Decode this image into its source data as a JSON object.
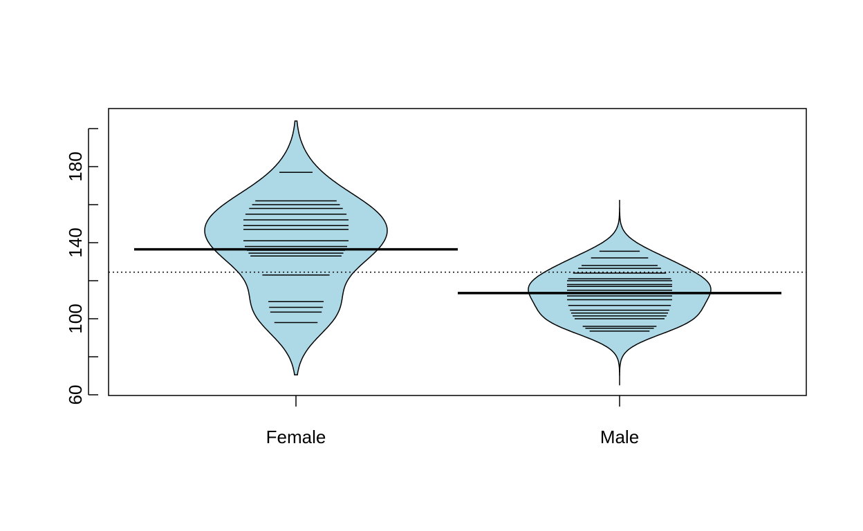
{
  "chart_data": {
    "type": "beanplot",
    "title": "",
    "xlabel": "",
    "ylabel": "",
    "ylim": [
      60,
      210
    ],
    "yticks": [
      60,
      80,
      100,
      120,
      140,
      160,
      180,
      200
    ],
    "ytick_labels": [
      "60",
      "",
      "100",
      "",
      "140",
      "",
      "180",
      ""
    ],
    "overall_mean": 124.5,
    "fill_color": "#add8e6",
    "categories": [
      "Female",
      "Male"
    ],
    "groups": [
      {
        "category": "Female",
        "mean": 136.5,
        "range": [
          70.5,
          204
        ],
        "observations": [
          98,
          103.5,
          106,
          109,
          123,
          133,
          134.5,
          136,
          138,
          141,
          147,
          149,
          152,
          155,
          158,
          160,
          162,
          177
        ]
      },
      {
        "category": "Male",
        "mean": 113.5,
        "range": [
          65,
          162.5
        ],
        "observations": [
          93.5,
          95,
          96,
          100,
          101.5,
          103,
          104.5,
          107,
          110,
          112,
          113.5,
          115,
          117,
          118,
          120,
          121,
          124,
          126.5,
          128,
          132,
          135.5
        ]
      }
    ]
  }
}
